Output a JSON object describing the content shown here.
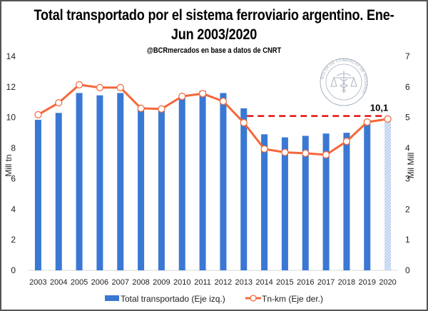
{
  "chart_data": {
    "type": "bar",
    "title": "Total transportado por el sistema ferroviario argentino. Ene-Jun 2003/2020",
    "subtitle": "@BCRmercados en base a datos de CNRT",
    "watermark": "BOLSA DE COMERCIO DE ROSARIO",
    "categories": [
      "2003",
      "2004",
      "2005",
      "2006",
      "2007",
      "2008",
      "2009",
      "2010",
      "2011",
      "2012",
      "2013",
      "2014",
      "2015",
      "2016",
      "2017",
      "2018",
      "2019",
      "2020"
    ],
    "series": [
      {
        "name": "Total transportado (Eje izq.)",
        "type": "bar",
        "axis": "left",
        "color": "#3a78d4",
        "highlight_last": {
          "category": "2020",
          "style": "hatched",
          "color": "#a9c4e8"
        },
        "values": [
          9.85,
          10.3,
          11.6,
          11.45,
          11.6,
          10.7,
          10.7,
          11.3,
          11.75,
          11.6,
          10.6,
          8.9,
          8.7,
          8.8,
          8.95,
          9.0,
          9.85,
          10.1
        ]
      },
      {
        "name": "Tn-km (Eje der.)",
        "type": "line",
        "axis": "right",
        "color": "#f4673a",
        "values": [
          5.09,
          5.48,
          6.07,
          5.98,
          5.98,
          5.3,
          5.28,
          5.69,
          5.78,
          5.53,
          4.83,
          3.97,
          3.86,
          3.83,
          3.78,
          4.22,
          4.85,
          4.95
        ]
      }
    ],
    "reference_line": {
      "value": 10.1,
      "axis": "left",
      "from": "2013",
      "to": "2020",
      "color": "#e01010",
      "style": "dashed",
      "label": "10,1"
    },
    "ylabel": "Mill tn",
    "ylabel_right": "Mil Mill",
    "ylim": [
      0,
      14
    ],
    "ylim_right": [
      0,
      7
    ],
    "yticks": [
      "0",
      "2",
      "4",
      "6",
      "8",
      "10",
      "12",
      "14"
    ],
    "yticks_right": [
      "0",
      "1",
      "2",
      "3",
      "4",
      "5",
      "6",
      "7"
    ],
    "grid": false,
    "legend": {
      "placement": "bottom",
      "entries": [
        "Total transportado (Eje izq.)",
        "Tn-km (Eje der.)"
      ]
    }
  }
}
